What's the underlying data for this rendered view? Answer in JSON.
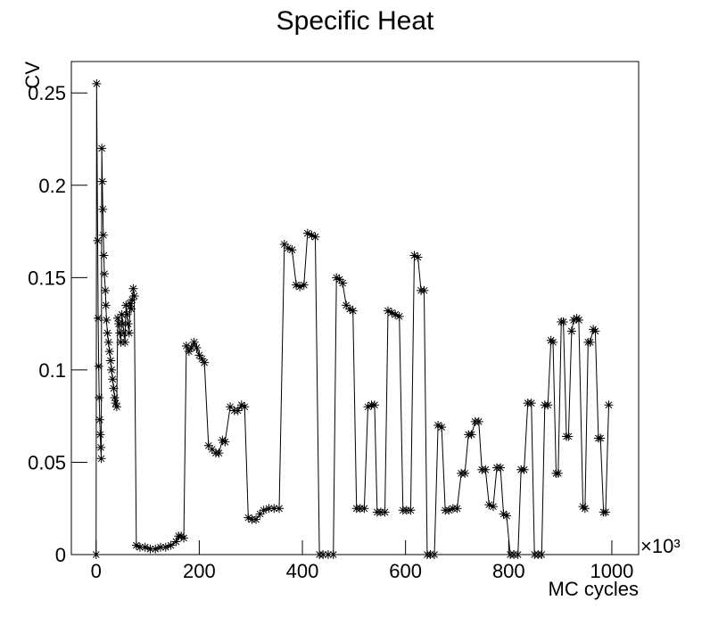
{
  "chart_data": {
    "type": "line",
    "title": "Specific Heat",
    "x_label": "MC cycles",
    "y_label": "CV",
    "x_multiplier": "×10³",
    "xlim": [
      -48,
      1052
    ],
    "ylim": [
      0,
      0.267
    ],
    "xticks": [
      0,
      200,
      400,
      600,
      800,
      1000
    ],
    "yticks": [
      0,
      0.05,
      0.1,
      0.15,
      0.2,
      0.25
    ],
    "marker": "star",
    "color": "#000000",
    "x": [
      0,
      1,
      3,
      4,
      5,
      6,
      7,
      8,
      9,
      10,
      11,
      12,
      13,
      14,
      15,
      16,
      18,
      19,
      20,
      22,
      24,
      26,
      28,
      30,
      32,
      34,
      36,
      38,
      40,
      42,
      44,
      46,
      48,
      50,
      52,
      54,
      56,
      58,
      60,
      62,
      64,
      66,
      68,
      70,
      72,
      74,
      78,
      85,
      95,
      105,
      115,
      125,
      135,
      145,
      155,
      160,
      165,
      170,
      175,
      180,
      185,
      190,
      195,
      200,
      205,
      210,
      218,
      225,
      232,
      238,
      245,
      250,
      260,
      268,
      275,
      282,
      288,
      295,
      302,
      310,
      318,
      325,
      335,
      345,
      355,
      365,
      372,
      380,
      388,
      395,
      403,
      410,
      418,
      425,
      433,
      440,
      450,
      460,
      466,
      472,
      478,
      485,
      492,
      498,
      505,
      512,
      520,
      527,
      534,
      540,
      545,
      552,
      560,
      566,
      573,
      580,
      588,
      595,
      602,
      610,
      617,
      624,
      630,
      636,
      642,
      648,
      656,
      663,
      670,
      677,
      684,
      692,
      700,
      708,
      715,
      722,
      728,
      735,
      742,
      748,
      755,
      762,
      770,
      777,
      784,
      790,
      796,
      803,
      810,
      818,
      824,
      830,
      837,
      844,
      850,
      857,
      864,
      870,
      876,
      882,
      886,
      892,
      896,
      902,
      906,
      912,
      916,
      922,
      926,
      932,
      936,
      944,
      948,
      954,
      958,
      964,
      968,
      974,
      978,
      984,
      988,
      994
    ],
    "values": [
      0,
      0.255,
      0.17,
      0.128,
      0.102,
      0.085,
      0.073,
      0.065,
      0.058,
      0.052,
      0.22,
      0.202,
      0.187,
      0.173,
      0.162,
      0.152,
      0.143,
      0.135,
      0.127,
      0.12,
      0.115,
      0.11,
      0.105,
      0.1,
      0.095,
      0.09,
      0.085,
      0.082,
      0.08,
      0.128,
      0.125,
      0.12,
      0.115,
      0.13,
      0.125,
      0.12,
      0.115,
      0.135,
      0.13,
      0.125,
      0.12,
      0.136,
      0.133,
      0.138,
      0.144,
      0.14,
      0.005,
      0.004,
      0.004,
      0.003,
      0.003,
      0.004,
      0.004,
      0.005,
      0.007,
      0.01,
      0.01,
      0.009,
      0.113,
      0.11,
      0.112,
      0.115,
      0.112,
      0.108,
      0.106,
      0.104,
      0.059,
      0.057,
      0.055,
      0.055,
      0.062,
      0.061,
      0.08,
      0.078,
      0.078,
      0.081,
      0.08,
      0.02,
      0.019,
      0.019,
      0.022,
      0.024,
      0.025,
      0.025,
      0.025,
      0.168,
      0.166,
      0.165,
      0.146,
      0.145,
      0.146,
      0.174,
      0.173,
      0.172,
      0,
      0,
      0,
      0,
      0.15,
      0.149,
      0.147,
      0.135,
      0.133,
      0.132,
      0.025,
      0.025,
      0.025,
      0.08,
      0.081,
      0.081,
      0.023,
      0.023,
      0.023,
      0.132,
      0.131,
      0.13,
      0.129,
      0.024,
      0.024,
      0.024,
      0.162,
      0.161,
      0.143,
      0.143,
      0,
      0,
      0,
      0.07,
      0.069,
      0.024,
      0.024,
      0.025,
      0.025,
      0.044,
      0.044,
      0.065,
      0.065,
      0.072,
      0.072,
      0.046,
      0.046,
      0.027,
      0.026,
      0.047,
      0.047,
      0.022,
      0.021,
      0,
      0,
      0,
      0.046,
      0.046,
      0.082,
      0.082,
      0,
      0,
      0,
      0.081,
      0.081,
      0.116,
      0.115,
      0.044,
      0.044,
      0.126,
      0.126,
      0.064,
      0.064,
      0.121,
      0.127,
      0.128,
      0.127,
      0.026,
      0.025,
      0.115,
      0.115,
      0.122,
      0.121,
      0.063,
      0.063,
      0.023,
      0.023,
      0.081
    ]
  }
}
